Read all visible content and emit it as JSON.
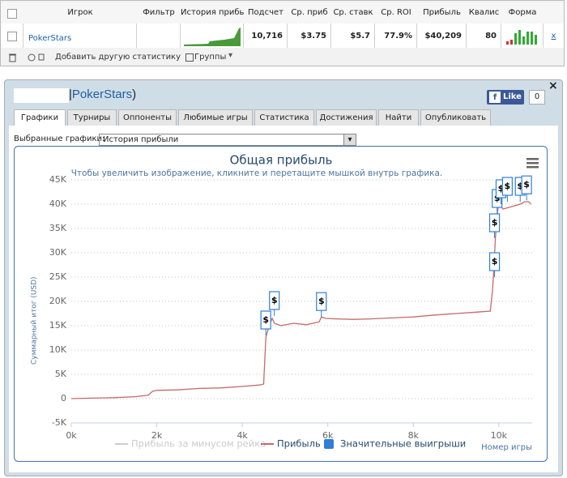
{
  "stats_table": {
    "headers": [
      "Игрок",
      "Фильтр",
      "История прибы",
      "Подсчет",
      "Ср. приб",
      "Ср. ставк",
      "Ср. ROI",
      "Прибыль",
      "Квалис",
      "Форма"
    ],
    "row": {
      "player": "PokerStars",
      "count": "10,716",
      "avg_profit": "$3.75",
      "avg_stake": "$5.7",
      "avg_roi": "77.9%",
      "profit": "$40,209",
      "qualis": "80",
      "remove": "x"
    }
  },
  "toolbar": {
    "add_stats": "Добавить другую статистику",
    "groups": "Группы"
  },
  "panel": {
    "title_prefix": "|",
    "title_name": "PokerStars",
    "title_suffix": ")",
    "like": "Like",
    "like_count": "0",
    "close": "×",
    "tabs": [
      "Графики",
      "Турниры",
      "Оппоненты",
      "Любимые игры",
      "Статистика",
      "Достижения",
      "Найти",
      "Опубликовать"
    ],
    "chart_selector_label": "Выбранные графики:",
    "chart_selected": "История прибыли"
  },
  "chart_data": {
    "type": "line",
    "title": "Общая прибыль",
    "subtitle": "Чтобы увеличить изображение, кликните и перетащите мышкой внутрь графика.",
    "y_label": "Суммарный итог (USD)",
    "x_label": "Номер игры",
    "xlim": [
      0,
      10780
    ],
    "ylim": [
      -5000,
      45000
    ],
    "xticks": [
      {
        "value": 0,
        "label": "0k"
      },
      {
        "value": 2000,
        "label": "2k"
      },
      {
        "value": 4000,
        "label": "4k"
      },
      {
        "value": 6000,
        "label": "6k"
      },
      {
        "value": 8000,
        "label": "8k"
      },
      {
        "value": 10000,
        "label": "10k"
      }
    ],
    "yticks": [
      {
        "value": -5000,
        "label": "-5K"
      },
      0,
      {
        "value": 5000,
        "label": "5K"
      },
      {
        "value": 10000,
        "label": "10K"
      },
      {
        "value": 15000,
        "label": "15K"
      },
      {
        "value": 20000,
        "label": "20K"
      },
      {
        "value": 25000,
        "label": "25K"
      },
      {
        "value": 30000,
        "label": "30K"
      },
      {
        "value": 35000,
        "label": "35K"
      },
      {
        "value": 40000,
        "label": "40K"
      },
      {
        "value": 45000,
        "label": "45K"
      }
    ],
    "grid": true,
    "series": [
      {
        "name": "Прибыль за минусом рейка",
        "color": "#cccccc",
        "visible": false
      },
      {
        "name": "Прибыль",
        "color": "#c46a6a",
        "x": [
          0,
          500,
          1000,
          1500,
          1800,
          1900,
          2000,
          2500,
          3000,
          3500,
          4000,
          4400,
          4500,
          4550,
          4580,
          4650,
          4700,
          4750,
          4900,
          5200,
          5500,
          5800,
          5850,
          5950,
          6200,
          6600,
          7000,
          7500,
          8000,
          8500,
          9000,
          9500,
          9800,
          9850,
          9880,
          9920,
          9960,
          10000,
          10100,
          10300,
          10500,
          10600,
          10700,
          10750
        ],
        "values": [
          0,
          100,
          200,
          400,
          700,
          1500,
          1700,
          1800,
          2100,
          2200,
          2500,
          2800,
          3000,
          12500,
          13500,
          15500,
          16500,
          15500,
          15000,
          15500,
          15200,
          15800,
          16800,
          16500,
          16400,
          16300,
          16400,
          16600,
          16800,
          17200,
          17500,
          17800,
          18000,
          22000,
          26000,
          33000,
          38000,
          40000,
          39000,
          39500,
          40000,
          40500,
          40500,
          40000
        ]
      },
      {
        "name": "Значительные выигрыши",
        "type": "flags",
        "color": "#2f7ed8",
        "flag_text": "$",
        "x": [
          4550,
          4750,
          5850,
          9900,
          9900,
          9960,
          10050,
          10200,
          10500,
          10650
        ],
        "values": [
          13000,
          17000,
          16800,
          25000,
          33000,
          38000,
          40000,
          40500,
          40500,
          40800
        ]
      }
    ]
  }
}
